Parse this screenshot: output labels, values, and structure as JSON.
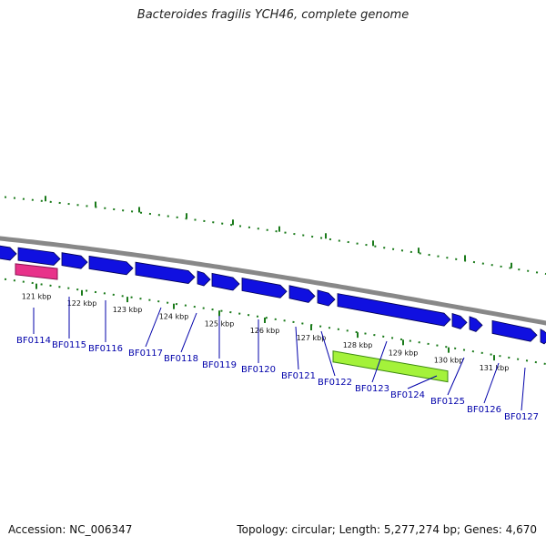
{
  "title": "Bacteroides fragilis YCH46, complete genome",
  "footer": {
    "accession": "Accession: NC_006347",
    "stats": "Topology: circular; Length: 5,277,274 bp; Genes: 4,670"
  },
  "colors": {
    "gene_arrow": "#1010e0",
    "gene_label": "#0000aa",
    "backbone": "#888888",
    "tick": "#1a7a1a",
    "highlight_pink": "#e8328a",
    "highlight_lime": "#a4f23a"
  },
  "kbp_ticks": [
    "121 kbp",
    "122 kbp",
    "123 kbp",
    "124 kbp",
    "125 kbp",
    "126 kbp",
    "127 kbp",
    "128 kbp",
    "129 kbp",
    "130 kbp",
    "131 kbp"
  ],
  "genes": [
    "BF0114",
    "BF0115",
    "BF0116",
    "BF0117",
    "BF0118",
    "BF0119",
    "BF0120",
    "BF0121",
    "BF0122",
    "BF0123",
    "BF0124",
    "BF0125",
    "BF0126",
    "BF0127"
  ]
}
